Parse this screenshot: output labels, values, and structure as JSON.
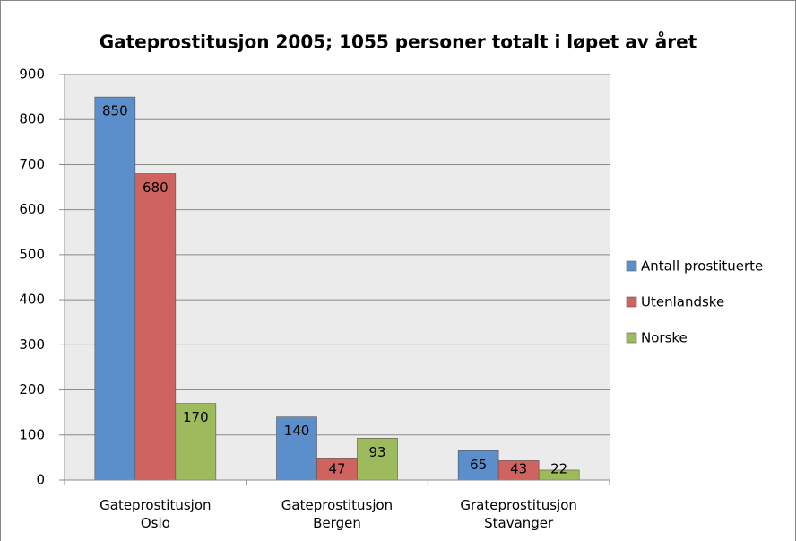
{
  "chart_data": {
    "type": "bar",
    "title": "Gateprostitusjon 2005; 1055 personer totalt i løpet av året",
    "categories": [
      "Gateprostitusjon\nOslo",
      "Gateprostitusjon\nBergen",
      "Grateprostitusjon\nStavanger"
    ],
    "series": [
      {
        "name": "Antall prostituerte",
        "color": "#5b8fcb",
        "values": [
          850,
          140,
          65
        ]
      },
      {
        "name": "Utenlandske",
        "color": "#cf6360",
        "values": [
          680,
          47,
          43
        ]
      },
      {
        "name": "Norske",
        "color": "#9dbb5c",
        "values": [
          170,
          93,
          22
        ]
      }
    ],
    "ylim": [
      0,
      900
    ],
    "yticks": [
      0,
      100,
      200,
      300,
      400,
      500,
      600,
      700,
      800,
      900
    ],
    "grid": true,
    "legend": "right"
  }
}
